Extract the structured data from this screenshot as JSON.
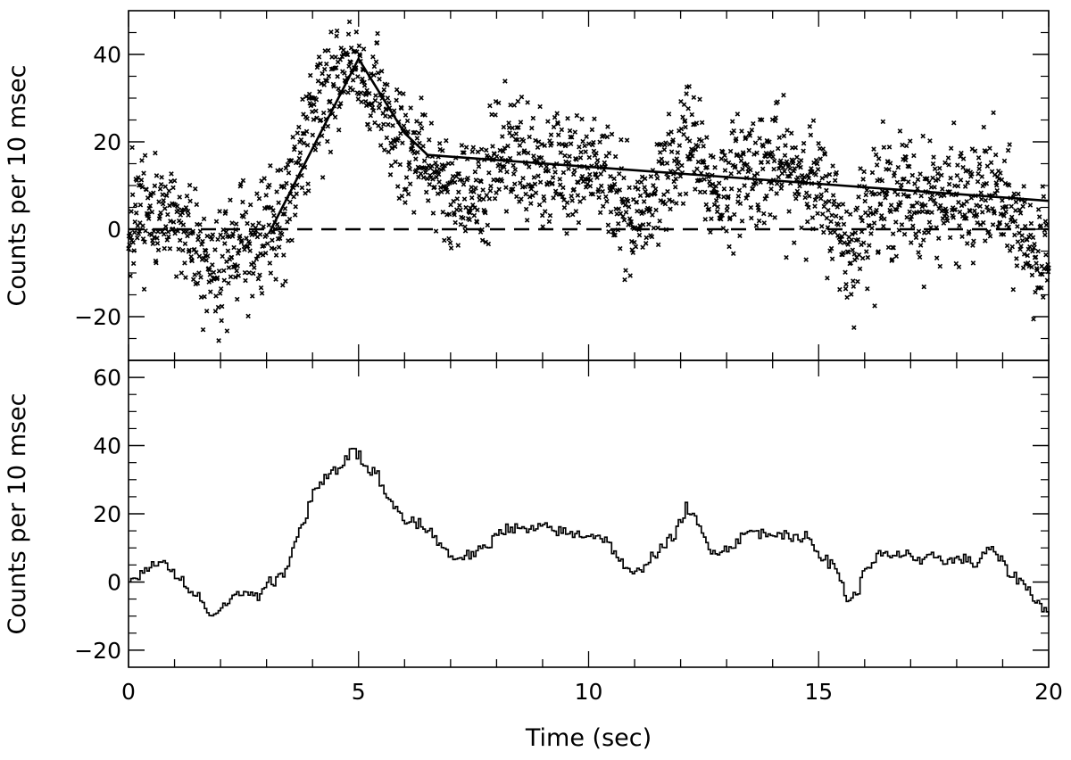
{
  "chart_data": [
    {
      "type": "scatter",
      "title": "",
      "xlabel": "",
      "ylabel": "Counts per 10 msec",
      "xlim": [
        0,
        20
      ],
      "ylim": [
        -30,
        50
      ],
      "x_ticks": [],
      "y_ticks": [
        {
          "value": -20,
          "label": "−20"
        },
        {
          "value": 0,
          "label": "0"
        },
        {
          "value": 20,
          "label": "20"
        },
        {
          "value": 40,
          "label": "40"
        }
      ],
      "reference_line": {
        "y": 0,
        "style": "dashed"
      },
      "model_curve": {
        "x": [
          3.05,
          5.0,
          6.0,
          6.5,
          20.0
        ],
        "y": [
          -1,
          39,
          22,
          17,
          6.5
        ]
      },
      "scatter_generation": {
        "n_points": 2000,
        "seed": 11,
        "noise_sd": 6.5,
        "symbol": "x"
      },
      "grid": false,
      "legend": "none"
    },
    {
      "type": "line",
      "step": true,
      "title": "",
      "xlabel": "Time (sec)",
      "ylabel": "Counts per 10 msec",
      "xlim": [
        0,
        20
      ],
      "ylim": [
        -25,
        65
      ],
      "x_ticks": [
        {
          "value": 0,
          "label": "0"
        },
        {
          "value": 5,
          "label": "5"
        },
        {
          "value": 10,
          "label": "10"
        },
        {
          "value": 15,
          "label": "15"
        },
        {
          "value": 20,
          "label": "20"
        }
      ],
      "y_ticks": [
        {
          "value": -20,
          "label": "−20"
        },
        {
          "value": 0,
          "label": "0"
        },
        {
          "value": 20,
          "label": "20"
        },
        {
          "value": 40,
          "label": "40"
        },
        {
          "value": 60,
          "label": "60"
        }
      ],
      "x": [
        0.0,
        0.3,
        0.6,
        0.8,
        1.0,
        1.3,
        1.6,
        1.8,
        2.0,
        2.3,
        2.6,
        2.8,
        3.0,
        3.2,
        3.4,
        3.6,
        3.8,
        4.0,
        4.2,
        4.4,
        4.6,
        4.8,
        5.0,
        5.2,
        5.4,
        5.6,
        5.8,
        6.0,
        6.3,
        6.6,
        7.0,
        7.4,
        7.8,
        8.0,
        8.3,
        8.6,
        9.0,
        9.3,
        9.6,
        10.0,
        10.3,
        10.6,
        10.8,
        11.0,
        11.3,
        11.6,
        11.9,
        12.1,
        12.3,
        12.6,
        12.9,
        13.2,
        13.5,
        13.8,
        14.1,
        14.4,
        14.7,
        14.9,
        15.1,
        15.4,
        15.6,
        15.8,
        16.0,
        16.3,
        16.6,
        16.9,
        17.2,
        17.5,
        17.8,
        18.1,
        18.4,
        18.6,
        18.8,
        19.1,
        19.4,
        19.7,
        20.0
      ],
      "values": [
        0,
        3,
        5,
        6,
        2,
        -2,
        -6,
        -9,
        -8,
        -3,
        -3,
        -5,
        0,
        0,
        4,
        12,
        18,
        27,
        30,
        32,
        34,
        38,
        37,
        33,
        31,
        25,
        22,
        18,
        17,
        14,
        7,
        8,
        10,
        15,
        16,
        15,
        16,
        15,
        14,
        14,
        13,
        8,
        3,
        2,
        7,
        10,
        15,
        22,
        18,
        10,
        9,
        12,
        15,
        14,
        15,
        12,
        14,
        10,
        7,
        3,
        -5,
        -4,
        4,
        8,
        7,
        9,
        5,
        8,
        6,
        7,
        5,
        9,
        9,
        3,
        0,
        -5,
        -10
      ],
      "grid": false,
      "legend": "none"
    }
  ]
}
